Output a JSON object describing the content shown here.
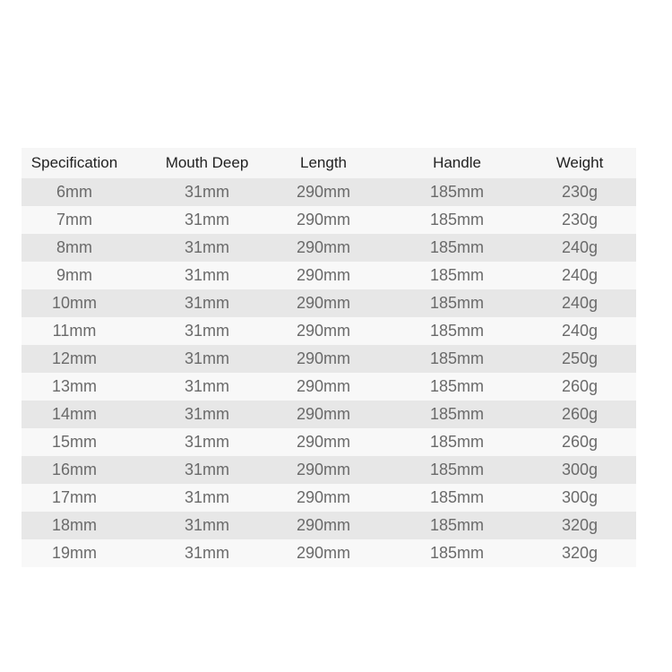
{
  "table": {
    "headers": [
      "Specification",
      "Mouth Deep",
      "Length",
      "Handle",
      "Weight"
    ],
    "rows": [
      [
        "6mm",
        "31mm",
        "290mm",
        "185mm",
        "230g"
      ],
      [
        "7mm",
        "31mm",
        "290mm",
        "185mm",
        "230g"
      ],
      [
        "8mm",
        "31mm",
        "290mm",
        "185mm",
        "240g"
      ],
      [
        "9mm",
        "31mm",
        "290mm",
        "185mm",
        "240g"
      ],
      [
        "10mm",
        "31mm",
        "290mm",
        "185mm",
        "240g"
      ],
      [
        "11mm",
        "31mm",
        "290mm",
        "185mm",
        "240g"
      ],
      [
        "12mm",
        "31mm",
        "290mm",
        "185mm",
        "250g"
      ],
      [
        "13mm",
        "31mm",
        "290mm",
        "185mm",
        "260g"
      ],
      [
        "14mm",
        "31mm",
        "290mm",
        "185mm",
        "260g"
      ],
      [
        "15mm",
        "31mm",
        "290mm",
        "185mm",
        "260g"
      ],
      [
        "16mm",
        "31mm",
        "290mm",
        "185mm",
        "300g"
      ],
      [
        "17mm",
        "31mm",
        "290mm",
        "185mm",
        "300g"
      ],
      [
        "18mm",
        "31mm",
        "290mm",
        "185mm",
        "320g"
      ],
      [
        "19mm",
        "31mm",
        "290mm",
        "185mm",
        "320g"
      ]
    ]
  }
}
